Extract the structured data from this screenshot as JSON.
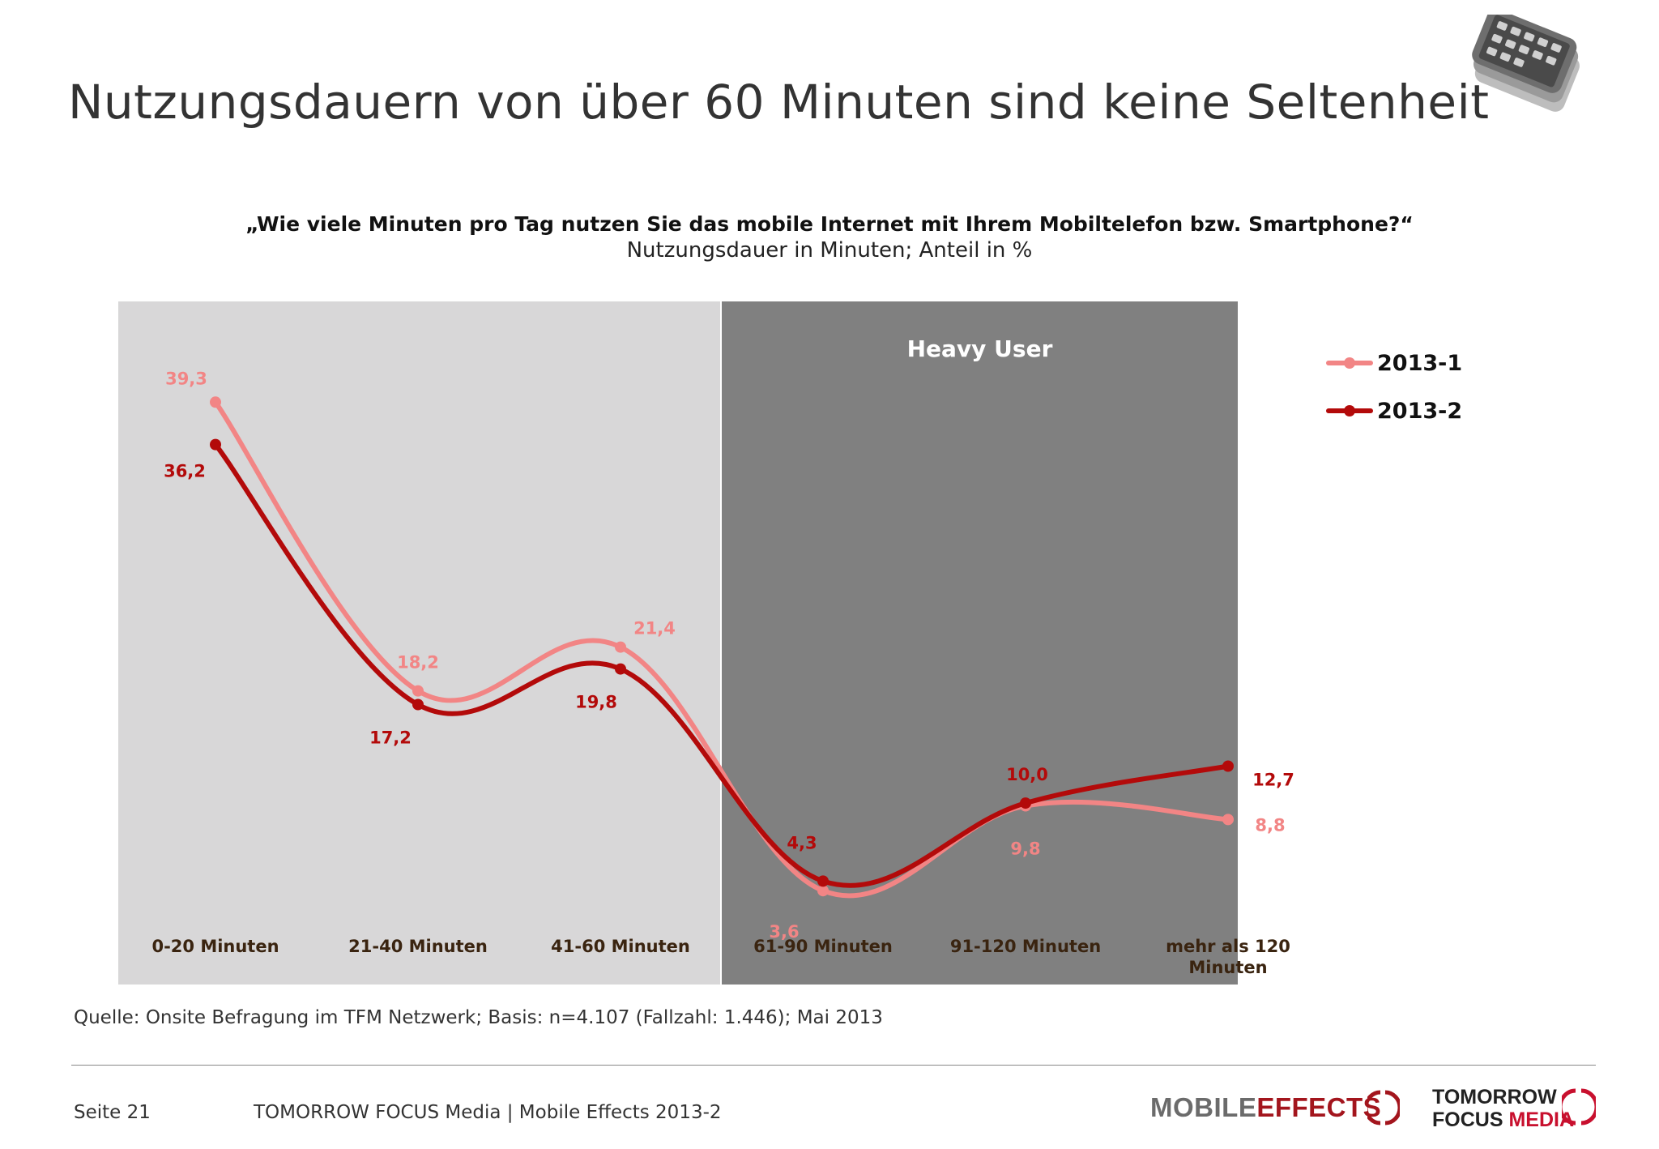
{
  "slide": {
    "title": "Nutzungsdauern von über 60 Minuten sind keine Seltenheit",
    "question": "„Wie viele Minuten pro Tag nutzen Sie das mobile Internet mit Ihrem Mobiltelefon bzw. Smartphone?“",
    "subtitle": "Nutzungsdauer in Minuten; Anteil in %",
    "source": "Quelle: Onsite Befragung im TFM Netzwerk; Basis: n=4.107 (Fallzahl: 1.446); Mai 2013",
    "page_number": "Seite 21",
    "footer_text": "TOMORROW FOCUS Media | Mobile Effects 2013-2",
    "logo_mobile": "MOBILE",
    "logo_effects": "EFFECTS",
    "logo_tomorrow": "TOMORROW",
    "logo_focus": "FOCUS",
    "logo_media": "MEDIA"
  },
  "chart_data": {
    "type": "line",
    "title": "„Wie viele Minuten pro Tag nutzen Sie das mobile Internet mit Ihrem Mobiltelefon bzw. Smartphone?“",
    "subtitle": "Nutzungsdauer in Minuten; Anteil in %",
    "categories": [
      "0-20 Minuten",
      "21-40 Minuten",
      "41-60 Minuten",
      "61-90 Minuten",
      "91-120 Minuten",
      "mehr als 120 Minuten"
    ],
    "series": [
      {
        "name": "2013-1",
        "values": [
          39.3,
          18.2,
          21.4,
          3.6,
          9.8,
          8.8
        ],
        "labels": [
          "39,3",
          "18,2",
          "21,4",
          "3,6",
          "9,8",
          "8,8"
        ],
        "color": "#f28585"
      },
      {
        "name": "2013-2",
        "values": [
          36.2,
          17.2,
          19.8,
          4.3,
          10.0,
          12.7
        ],
        "labels": [
          "36,2",
          "17,2",
          "19,8",
          "4,3",
          "10,0",
          "12,7"
        ],
        "color": "#b30a0a"
      }
    ],
    "ylim": [
      0,
      45
    ],
    "grid": false,
    "legend": "top-right",
    "smooth": true,
    "bands": [
      {
        "from": "0-20 Minuten",
        "to": "41-60 Minuten",
        "color": "#d8d7d8",
        "label": ""
      },
      {
        "from": "61-90 Minuten",
        "to": "mehr als 120 Minuten",
        "color": "#808080",
        "label": "Heavy User"
      }
    ],
    "category_label_color": "#3a2410",
    "band_label_color": "#ffffff"
  }
}
